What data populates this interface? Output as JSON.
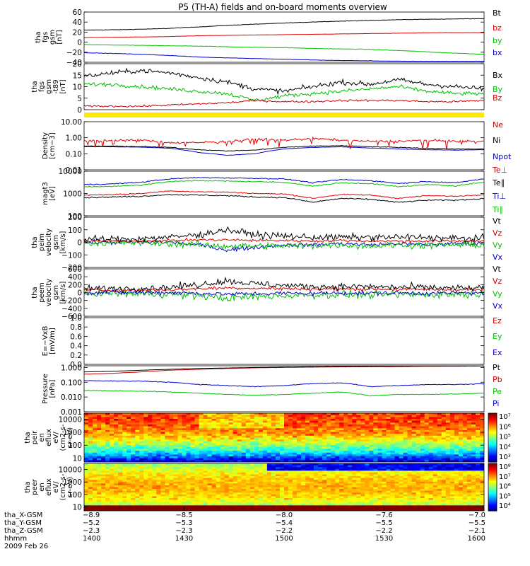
{
  "title": "P5 (TH-A) fields and on-board moments overview",
  "chart_data": [
    {
      "type": "line",
      "ylabel": [
        "tha",
        "fgs",
        "gsm",
        "[nT]"
      ],
      "ylim": [
        -40,
        60
      ],
      "ticks": [
        60,
        40,
        20,
        0,
        -20,
        -40
      ],
      "tick_labels": [
        "60",
        "40",
        "20",
        "0",
        "−20",
        "−40"
      ],
      "legend": [
        {
          "label": "Bt",
          "color": "#000000"
        },
        {
          "label": "bz",
          "color": "#e00000"
        },
        {
          "label": "by",
          "color": "#00c000"
        },
        {
          "label": "bx",
          "color": "#0000cc"
        }
      ],
      "series": [
        {
          "name": "Bt",
          "color": "#000000",
          "values": [
            24,
            25,
            27,
            31,
            35,
            38,
            41,
            43,
            45,
            46,
            47
          ],
          "noise": 0.4
        },
        {
          "name": "bz",
          "color": "#e00000",
          "values": [
            9,
            10,
            11,
            13,
            14,
            15,
            16,
            17,
            18,
            19,
            19
          ],
          "noise": 0.2
        },
        {
          "name": "by",
          "color": "#00c000",
          "values": [
            -5,
            -6,
            -7,
            -8,
            -10,
            -11,
            -13,
            -14,
            -17,
            -21,
            -24
          ],
          "noise": 0.4
        },
        {
          "name": "bx",
          "color": "#0000cc",
          "values": [
            -21,
            -23,
            -26,
            -30,
            -32,
            -34,
            -36,
            -37,
            -38,
            -38,
            -38
          ],
          "noise": 0.3
        }
      ]
    },
    {
      "type": "line",
      "ylabel": [
        "tha",
        "fgs",
        "gsm",
        "-t89",
        "[nT]"
      ],
      "ylim": [
        0,
        20
      ],
      "ticks": [
        20,
        15,
        10,
        5,
        0
      ],
      "tick_labels": [
        "20",
        "15",
        "10",
        "5",
        "0"
      ],
      "legend": [
        {
          "label": "Bx",
          "color": "#000000"
        },
        {
          "label": "By",
          "color": "#00c000"
        },
        {
          "label": "Bz",
          "color": "#cc0000"
        }
      ],
      "series": [
        {
          "name": "Bx",
          "color": "#000000",
          "values": [
            14.5,
            16,
            17,
            16,
            14,
            12,
            9,
            8,
            10,
            12,
            11,
            13,
            11,
            10,
            9
          ],
          "noise": 1.0
        },
        {
          "name": "By",
          "color": "#00c000",
          "values": [
            11,
            11,
            10,
            9,
            8,
            7,
            4,
            6,
            7,
            8,
            9,
            10,
            8,
            7,
            7
          ],
          "noise": 0.8
        },
        {
          "name": "Bz",
          "color": "#cc0000",
          "values": [
            1.5,
            1.5,
            1.5,
            2,
            2.5,
            3,
            4,
            3.5,
            3.5,
            4,
            4,
            4,
            3.5,
            3.5,
            4
          ],
          "noise": 0.4
        }
      ]
    },
    {
      "type": "line",
      "log": true,
      "ylabel": [
        "Density",
        "[cm−3]"
      ],
      "ylim": [
        0.01,
        10
      ],
      "ticks": [
        10,
        1,
        0.1,
        0.01
      ],
      "tick_labels": [
        "10.00",
        "1.00",
        "0.10",
        "0.01"
      ],
      "legend": [
        {
          "label": "Ne",
          "color": "#cc0000"
        },
        {
          "label": "Ni",
          "color": "#000000"
        },
        {
          "label": "Npot",
          "color": "#0000cc"
        }
      ],
      "series": [
        {
          "name": "Npot",
          "color": "#0000cc",
          "values": [
            0.28,
            0.27,
            0.26,
            0.22,
            0.12,
            0.08,
            0.1,
            0.2,
            0.25,
            0.27,
            0.23,
            0.2,
            0.18,
            0.17,
            0.18
          ],
          "noise": 0.02
        },
        {
          "name": "Ni",
          "color": "#000000",
          "values": [
            0.3,
            0.3,
            0.28,
            0.25,
            0.18,
            0.15,
            0.17,
            0.25,
            0.3,
            0.32,
            0.28,
            0.25,
            0.22,
            0.2,
            0.2
          ],
          "noise": 0.05
        },
        {
          "name": "Ne",
          "color": "#e00000",
          "values": [
            0.6,
            0.7,
            0.7,
            0.5,
            0.5,
            0.6,
            0.8,
            0.7,
            0.9,
            0.7,
            0.6,
            0.6,
            0.7,
            0.6,
            0.6
          ],
          "noise": 0.15,
          "spiky": true
        }
      ]
    },
    {
      "type": "line",
      "log": true,
      "ylabel": [
        "magt3",
        "[eV]"
      ],
      "ylim": [
        100,
        10000
      ],
      "ticks": [
        10000,
        1000,
        100
      ],
      "tick_labels": [
        "10000",
        "1000",
        "100"
      ],
      "legend": [
        {
          "label": "Te⊥",
          "color": "#cc0000"
        },
        {
          "label": "Te∥",
          "color": "#000000"
        },
        {
          "label": "Ti⊥",
          "color": "#0000cc"
        },
        {
          "label": "Ti∥",
          "color": "#00c000"
        }
      ],
      "series": [
        {
          "name": "Ti⊥",
          "color": "#0000cc",
          "values": [
            2500,
            2700,
            3200,
            4500,
            5200,
            5000,
            4800,
            4500,
            3000,
            4200,
            3800,
            2800,
            3500,
            3000,
            4500
          ],
          "noise": 0.05
        },
        {
          "name": "Ti∥",
          "color": "#00c000",
          "values": [
            2000,
            2100,
            2400,
            3400,
            3800,
            3600,
            3400,
            3200,
            2100,
            3000,
            2800,
            2000,
            2500,
            2200,
            3200
          ],
          "noise": 0.05
        },
        {
          "name": "Te⊥",
          "color": "#e00000",
          "values": [
            850,
            900,
            1000,
            1300,
            1200,
            1150,
            1000,
            950,
            600,
            900,
            850,
            600,
            800,
            750,
            900
          ],
          "noise": 0.05
        },
        {
          "name": "Te∥",
          "color": "#000000",
          "values": [
            650,
            700,
            750,
            900,
            850,
            800,
            700,
            650,
            400,
            600,
            550,
            400,
            500,
            500,
            600
          ],
          "noise": 0.06
        }
      ]
    },
    {
      "type": "line",
      "ylabel": [
        "tha",
        "peim",
        "velocity",
        "gsm",
        "[km/s]"
      ],
      "ylim": [
        -200,
        200
      ],
      "ticks": [
        200,
        100,
        0,
        -100,
        -200
      ],
      "tick_labels": [
        "200",
        "100",
        "0",
        "−100",
        "−200"
      ],
      "legend": [
        {
          "label": "Vt",
          "color": "#000000"
        },
        {
          "label": "Vz",
          "color": "#cc0000"
        },
        {
          "label": "Vy",
          "color": "#00c000"
        },
        {
          "label": "Vx",
          "color": "#0000cc"
        }
      ],
      "series": [
        {
          "name": "Vx",
          "color": "#0000cc",
          "values": [
            0,
            0,
            0,
            0,
            -20,
            -60,
            -40,
            -20,
            -20,
            -10,
            -20,
            -10,
            -20,
            -10,
            -10
          ],
          "noise": 15
        },
        {
          "name": "Vy",
          "color": "#00c000",
          "values": [
            -5,
            -5,
            -5,
            -10,
            -20,
            -30,
            -30,
            -30,
            -25,
            -20,
            -30,
            -20,
            -25,
            -20,
            -20
          ],
          "noise": 25
        },
        {
          "name": "Vz",
          "color": "#e00000",
          "values": [
            10,
            10,
            10,
            15,
            20,
            20,
            15,
            15,
            10,
            15,
            10,
            10,
            10,
            10,
            10
          ],
          "noise": 10
        },
        {
          "name": "Vt",
          "color": "#000000",
          "values": [
            25,
            25,
            30,
            40,
            60,
            100,
            60,
            50,
            40,
            40,
            40,
            40,
            40,
            30,
            30
          ],
          "noise": 25
        }
      ]
    },
    {
      "type": "line",
      "ylabel": [
        "tha",
        "peem",
        "velocity",
        "gsm",
        "[km/s]"
      ],
      "ylim": [
        -600,
        600
      ],
      "ticks": [
        600,
        400,
        200,
        0,
        -200,
        -400,
        -600
      ],
      "tick_labels": [
        "600",
        "400",
        "200",
        "0",
        "−200",
        "−400",
        "−600"
      ],
      "legend": [
        {
          "label": "Vt",
          "color": "#000000"
        },
        {
          "label": "Vz",
          "color": "#cc0000"
        },
        {
          "label": "Vy",
          "color": "#00c000"
        },
        {
          "label": "Vx",
          "color": "#0000cc"
        }
      ],
      "series": [
        {
          "name": "Vy",
          "color": "#00c000",
          "values": [
            -20,
            -20,
            -30,
            -40,
            -80,
            -150,
            -100,
            -80,
            -60,
            -50,
            -60,
            -50,
            -50,
            -40,
            -40
          ],
          "noise": 90
        },
        {
          "name": "Vx",
          "color": "#0000cc",
          "values": [
            0,
            0,
            0,
            0,
            -20,
            -40,
            -30,
            -20,
            -20,
            -10,
            -20,
            -10,
            -20,
            -10,
            -10
          ],
          "noise": 50
        },
        {
          "name": "Vz",
          "color": "#e00000",
          "values": [
            60,
            60,
            60,
            70,
            100,
            120,
            110,
            100,
            90,
            90,
            90,
            80,
            80,
            70,
            70
          ],
          "noise": 40
        },
        {
          "name": "Vt",
          "color": "#000000",
          "values": [
            100,
            100,
            110,
            130,
            200,
            300,
            220,
            180,
            150,
            150,
            150,
            130,
            130,
            110,
            110
          ],
          "noise": 80
        }
      ]
    },
    {
      "type": "line",
      "ylabel": [
        "E=−VxB",
        "[mV/m]"
      ],
      "ylim": [
        0,
        1
      ],
      "ticks": [
        1,
        0.8,
        0.6,
        0.4,
        0.2,
        0
      ],
      "tick_labels": [
        "1.0",
        "0.8",
        "0.6",
        "0.4",
        "0.2",
        "0.0"
      ],
      "legend": [
        {
          "label": "Ez",
          "color": "#cc0000"
        },
        {
          "label": "Ey",
          "color": "#00c000"
        },
        {
          "label": "Ex",
          "color": "#0000cc"
        }
      ],
      "series": []
    },
    {
      "type": "line",
      "log": true,
      "ylabel": [
        "Pressure",
        "[nPa]"
      ],
      "ylim": [
        0.001,
        1.3
      ],
      "ticks": [
        1,
        0.1,
        0.01,
        0.001
      ],
      "tick_labels": [
        "1.000",
        "0.100",
        "0.010",
        "0.001"
      ],
      "legend": [
        {
          "label": "Pt",
          "color": "#000000"
        },
        {
          "label": "Pb",
          "color": "#cc0000"
        },
        {
          "label": "Pe",
          "color": "#00c000"
        },
        {
          "label": "Pi",
          "color": "#0000cc"
        }
      ],
      "series": [
        {
          "name": "Pe",
          "color": "#00c000",
          "values": [
            0.028,
            0.026,
            0.025,
            0.022,
            0.018,
            0.015,
            0.013,
            0.015,
            0.018,
            0.022,
            0.012,
            0.015,
            0.015,
            0.016,
            0.018
          ],
          "noise": 0.05
        },
        {
          "name": "Pi",
          "color": "#0000cc",
          "values": [
            0.13,
            0.12,
            0.12,
            0.1,
            0.07,
            0.06,
            0.05,
            0.06,
            0.08,
            0.09,
            0.05,
            0.06,
            0.07,
            0.07,
            0.08
          ],
          "noise": 0.05
        },
        {
          "name": "Pb",
          "color": "#cc0000",
          "values": [
            0.35,
            0.4,
            0.5,
            0.65,
            0.75,
            0.85,
            0.95,
            1.0,
            1.05,
            1.1,
            1.12,
            1.15,
            1.2,
            1.22,
            1.25
          ],
          "noise": 0.01
        },
        {
          "name": "Pt",
          "color": "#000000",
          "values": [
            0.5,
            0.55,
            0.65,
            0.75,
            0.85,
            0.92,
            1.0,
            1.07,
            1.12,
            1.17,
            1.17,
            1.2,
            1.25,
            1.27,
            1.3
          ],
          "noise": 0.01
        }
      ]
    },
    {
      "type": "heatmap",
      "ylabel": [
        "tha",
        "peir",
        "en",
        "eflux",
        "eV/",
        "(cm2-s-",
        "sr-eV)"
      ],
      "ylim": [
        5,
        30000
      ],
      "log": true,
      "ticks": [
        10000,
        1000,
        100,
        10
      ],
      "tick_labels": [
        "10000",
        "1000",
        "100",
        "10"
      ],
      "colorbar": {
        "labels": [
          "10⁷",
          "10⁶",
          "10⁵",
          "10⁴",
          "10³"
        ],
        "log_min": 2.5,
        "log_max": 7
      }
    },
    {
      "type": "heatmap",
      "ylabel": [
        "tha",
        "peer",
        "en",
        "eflux",
        "eV/",
        "(cm2-s-",
        "sr-eV)"
      ],
      "ylim": [
        5,
        30000
      ],
      "log": true,
      "ticks": [
        10000,
        1000,
        100,
        10
      ],
      "tick_labels": [
        "10000",
        "1000",
        "100",
        "10"
      ],
      "colorbar": {
        "labels": [
          "10⁸",
          "10⁷",
          "10⁶",
          "10⁵",
          "10⁴"
        ],
        "log_min": 3.7,
        "log_max": 8
      }
    }
  ],
  "xaxis": {
    "row_labels": [
      "tha_X-GSM",
      "tha_Y-GSM",
      "tha_Z-GSM",
      "hhmm",
      "2009 Feb 26"
    ],
    "ticks": [
      {
        "X": "−8.9",
        "Y": "−5.2",
        "Z": "−2.3",
        "time": "1400"
      },
      {
        "X": "−8.5",
        "Y": "−5.3",
        "Z": "−2.3",
        "time": "1430"
      },
      {
        "X": "−8.0",
        "Y": "−5.4",
        "Z": "−2.2",
        "time": "1500"
      },
      {
        "X": "−7.6",
        "Y": "−5.5",
        "Z": "−2.2",
        "time": "1530"
      },
      {
        "X": "−7.0",
        "Y": "−5.5",
        "Z": "−2.1",
        "time": "1600"
      }
    ]
  }
}
